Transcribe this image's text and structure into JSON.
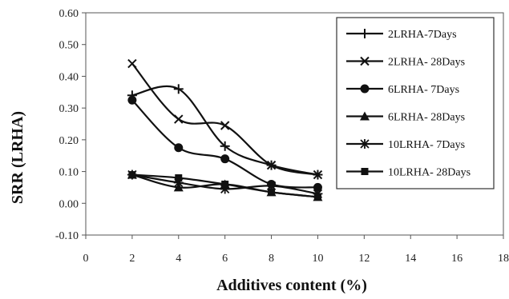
{
  "chart_data": {
    "type": "line",
    "title": "",
    "xlabel": "Additives content (%)",
    "ylabel": "SRR (LRHA)",
    "xlim": [
      0,
      18
    ],
    "ylim": [
      -0.1,
      0.6
    ],
    "x_ticks": [
      "0",
      "2",
      "4",
      "6",
      "8",
      "10",
      "12",
      "14",
      "16",
      "18"
    ],
    "y_ticks": [
      "-0.10",
      "0.00",
      "0.10",
      "0.20",
      "0.30",
      "0.40",
      "0.50",
      "0.60"
    ],
    "grid": "none",
    "legend_position": "top-right",
    "x": [
      2,
      4,
      6,
      8,
      10
    ],
    "series": [
      {
        "name": "2LRHA-7Days",
        "marker": "plus",
        "values": [
          0.34,
          0.36,
          0.18,
          0.12,
          0.09
        ]
      },
      {
        "name": "2LRHA- 28Days",
        "marker": "x",
        "values": [
          0.44,
          0.265,
          0.245,
          0.12,
          0.09
        ]
      },
      {
        "name": "6LRHA- 7Days",
        "marker": "circle",
        "values": [
          0.325,
          0.175,
          0.14,
          0.06,
          0.05
        ]
      },
      {
        "name": "6LRHA- 28Days",
        "marker": "triangle",
        "values": [
          0.09,
          0.05,
          0.06,
          0.035,
          0.02
        ]
      },
      {
        "name": "10LRHA- 7Days",
        "marker": "asterisk",
        "values": [
          0.09,
          0.065,
          0.045,
          0.055,
          0.03
        ]
      },
      {
        "name": "10LRHA- 28Days",
        "marker": "square",
        "values": [
          0.09,
          0.08,
          0.06,
          0.035,
          0.02
        ]
      }
    ]
  }
}
